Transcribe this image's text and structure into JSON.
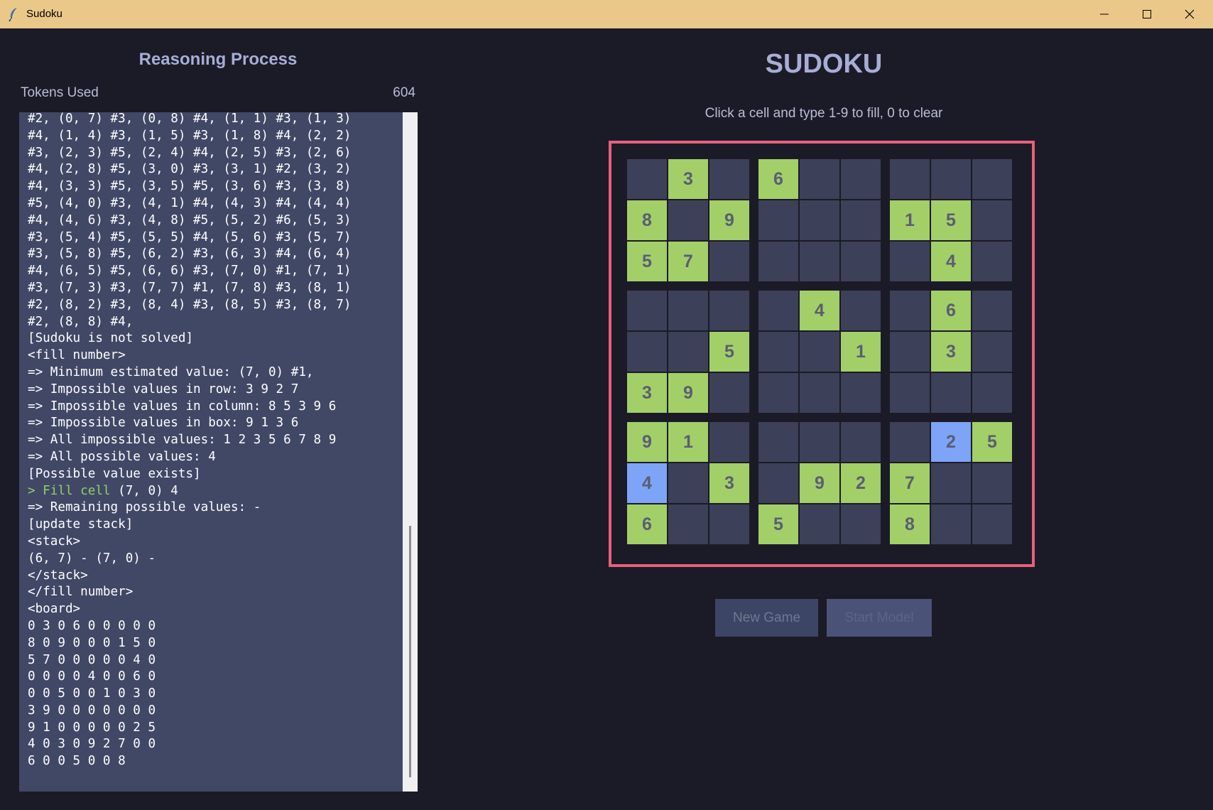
{
  "window": {
    "title": "Sudoku",
    "icon": "feather-icon"
  },
  "left_panel": {
    "title": "Reasoning Process",
    "tokens_label": "Tokens Used",
    "tokens_value": "604",
    "log_lines": [
      "#2, (0, 7) #3, (0, 8) #4, (1, 1) #3, (1, 3)",
      "#4, (1, 4) #3, (1, 5) #3, (1, 8) #4, (2, 2)",
      "#3, (2, 3) #5, (2, 4) #4, (2, 5) #3, (2, 6)",
      "#4, (2, 8) #5, (3, 0) #3, (3, 1) #2, (3, 2)",
      "#4, (3, 3) #5, (3, 5) #5, (3, 6) #3, (3, 8)",
      "#5, (4, 0) #3, (4, 1) #4, (4, 3) #4, (4, 4)",
      "#4, (4, 6) #3, (4, 8) #5, (5, 2) #6, (5, 3)",
      "#3, (5, 4) #5, (5, 5) #4, (5, 6) #3, (5, 7)",
      "#3, (5, 8) #5, (6, 2) #3, (6, 3) #4, (6, 4)",
      "#4, (6, 5) #5, (6, 6) #3, (7, 0) #1, (7, 1)",
      "#3, (7, 3) #3, (7, 7) #1, (7, 8) #3, (8, 1)",
      "#2, (8, 2) #3, (8, 4) #3, (8, 5) #3, (8, 7)",
      "#2, (8, 8) #4,",
      "[Sudoku is not solved]",
      "<fill number>",
      "=> Minimum estimated value: (7, 0) #1,",
      "=> Impossible values in row: 3 9 2 7",
      "=> Impossible values in column: 8 5 3 9 6",
      "=> Impossible values in box: 9 1 3 6",
      "=> All impossible values: 1 2 3 5 6 7 8 9",
      "=> All possible values: 4",
      "[Possible value exists]",
      "",
      "=> Remaining possible values: -",
      "[update stack]",
      "<stack>",
      "(6, 7) - (7, 0) -",
      "</stack>",
      "</fill number>",
      "<board>",
      "0 3 0 6 0 0 0 0 0",
      "8 0 9 0 0 0 1 5 0",
      "5 7 0 0 0 0 0 4 0",
      "0 0 0 0 4 0 0 6 0",
      "0 0 5 0 0 1 0 3 0",
      "3 9 0 0 0 0 0 0 0",
      "9 1 0 0 0 0 0 2 5",
      "4 0 3 0 9 2 7 0 0",
      "6 0 0 5 0 0 8"
    ],
    "fill_line": {
      "prefix": "> Fill cell",
      "rest": " (7, 0) 4"
    }
  },
  "right_panel": {
    "title": "SUDOKU",
    "instructions": "Click a cell and type 1-9 to fill, 0 to clear",
    "board": [
      [
        "",
        "3",
        "",
        "6",
        "",
        "",
        "",
        "",
        ""
      ],
      [
        "8",
        "",
        "9",
        "",
        "",
        "",
        "1",
        "5",
        ""
      ],
      [
        "5",
        "7",
        "",
        "",
        "",
        "",
        "",
        "4",
        ""
      ],
      [
        "",
        "",
        "",
        "",
        "4",
        "",
        "",
        "6",
        ""
      ],
      [
        "",
        "",
        "5",
        "",
        "",
        "1",
        "",
        "3",
        ""
      ],
      [
        "3",
        "9",
        "",
        "",
        "",
        "",
        "",
        "",
        ""
      ],
      [
        "9",
        "1",
        "",
        "",
        "",
        "",
        "",
        "2",
        "5"
      ],
      [
        "4",
        "",
        "3",
        "",
        "9",
        "2",
        "7",
        "",
        ""
      ],
      [
        "6",
        "",
        "",
        "5",
        "",
        "",
        "8",
        "",
        ""
      ]
    ],
    "filled_cells": [
      [
        6,
        7
      ],
      [
        7,
        0
      ]
    ],
    "colors": {
      "given": "#a2cf68",
      "filled": "#7da4f6",
      "empty": "#3c4058",
      "frame": "#e8607a"
    },
    "buttons": {
      "new_game": "New Game",
      "start_model": "Start Model"
    }
  }
}
